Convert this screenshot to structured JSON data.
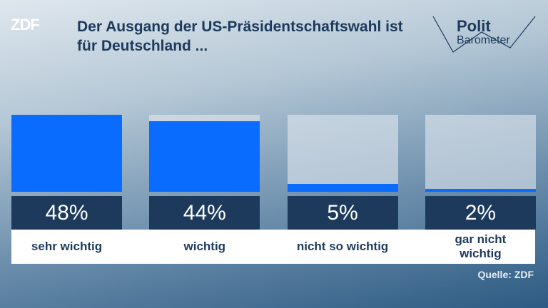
{
  "chart_data": {
    "type": "bar",
    "title": "Der Ausgang der US-Präsidentschaftswahl ist für Deutschland ...",
    "logo": "ZDF",
    "brand_top": "Polit",
    "brand_bottom": "Barometer",
    "categories": [
      "sehr wichtig",
      "wichtig",
      "nicht so wichtig",
      "gar nicht wichtig"
    ],
    "values": [
      48,
      44,
      5,
      2
    ],
    "value_labels": [
      "48%",
      "44%",
      "5%",
      "2%"
    ],
    "color": "#0a6cff",
    "ylim": [
      0,
      48
    ],
    "source": "Quelle: ZDF"
  }
}
